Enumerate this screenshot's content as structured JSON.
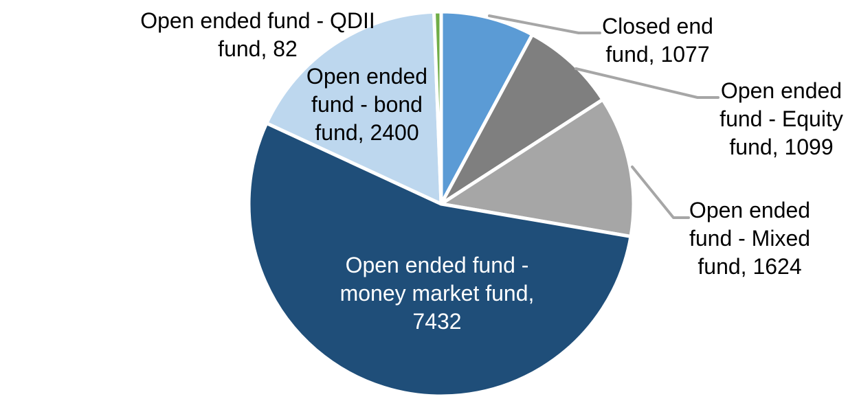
{
  "chart_data": {
    "type": "pie",
    "title": "",
    "legend": "none",
    "start_angle_deg": 0,
    "direction": "clockwise",
    "background": "#FFFFFF",
    "slice_border_color": "#FFFFFF",
    "leader_line_color": "#A6A6A6",
    "categories": [
      "Closed end fund",
      "Open ended fund - Equity fund",
      "Open ended fund - Mixed fund",
      "Open ended fund - money market fund",
      "Open ended fund - bond fund",
      "Open ended fund - QDII fund"
    ],
    "values": [
      1077,
      1099,
      1624,
      7432,
      2400,
      82
    ],
    "colors": [
      "#5B9BD5",
      "#7F7F7F",
      "#A6A6A6",
      "#1F4E79",
      "#BDD7EE",
      "#70AD47"
    ],
    "data_labels": [
      "Closed end\nfund, 1077",
      "Open ended\nfund - Equity\nfund, 1099",
      "Open ended\nfund - Mixed\nfund, 1624",
      "Open ended fund -\nmoney market fund,\n7432",
      "Open ended\nfund - bond\nfund, 2400",
      "Open ended fund - QDII\nfund, 82"
    ],
    "label_colors": [
      "#000000",
      "#000000",
      "#000000",
      "#FFFFFF",
      "#000000",
      "#000000"
    ]
  }
}
